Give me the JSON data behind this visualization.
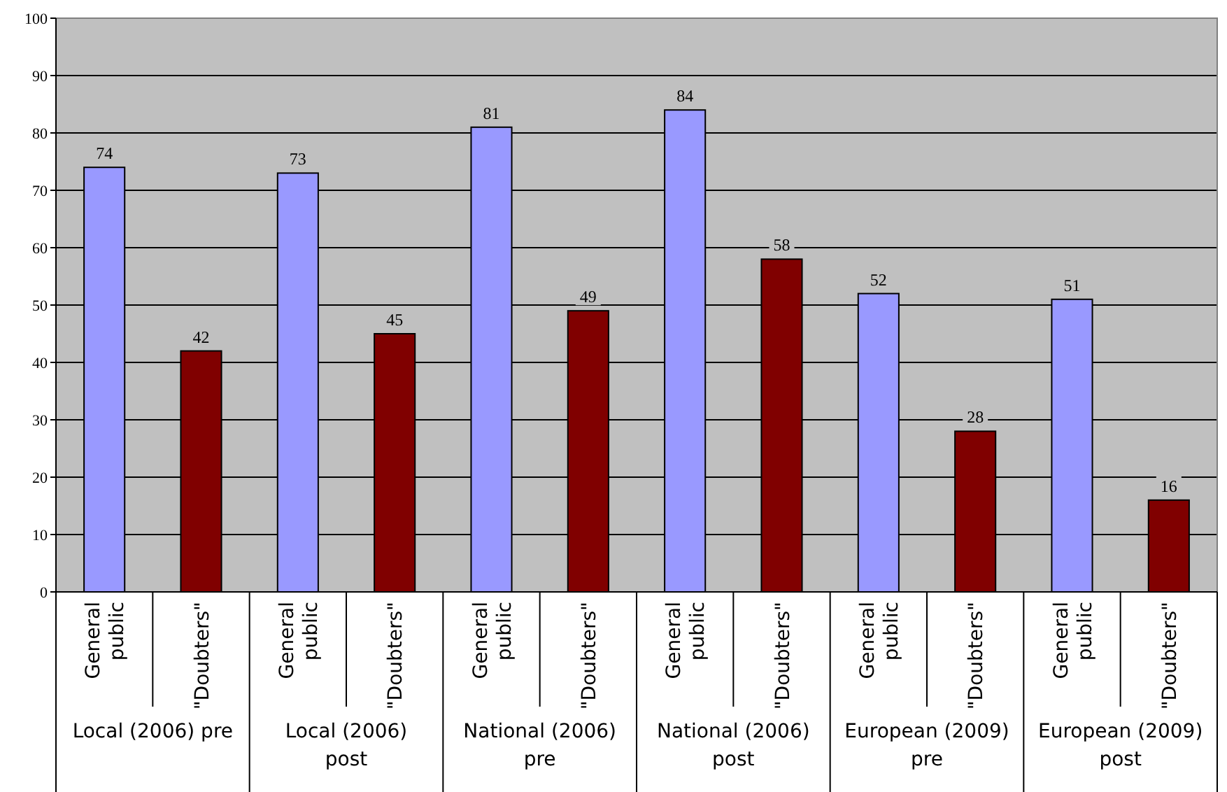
{
  "chart_data": {
    "type": "bar",
    "categories": [
      "Local (2006) pre",
      "Local (2006) post",
      "National (2006) pre",
      "National (2006) post",
      "European (2009) pre",
      "European (2009) post"
    ],
    "series": [
      {
        "name": "General public",
        "color": "#9999ff",
        "values": [
          74,
          73,
          81,
          84,
          52,
          51
        ]
      },
      {
        "name": "\"Doubters\"",
        "color": "#800000",
        "values": [
          42,
          45,
          49,
          58,
          28,
          16
        ]
      }
    ],
    "ylim": [
      0,
      100
    ],
    "yticks": [
      0,
      10,
      20,
      30,
      40,
      50,
      60,
      70,
      80,
      90,
      100
    ],
    "grid": "y",
    "data_labels": true
  }
}
